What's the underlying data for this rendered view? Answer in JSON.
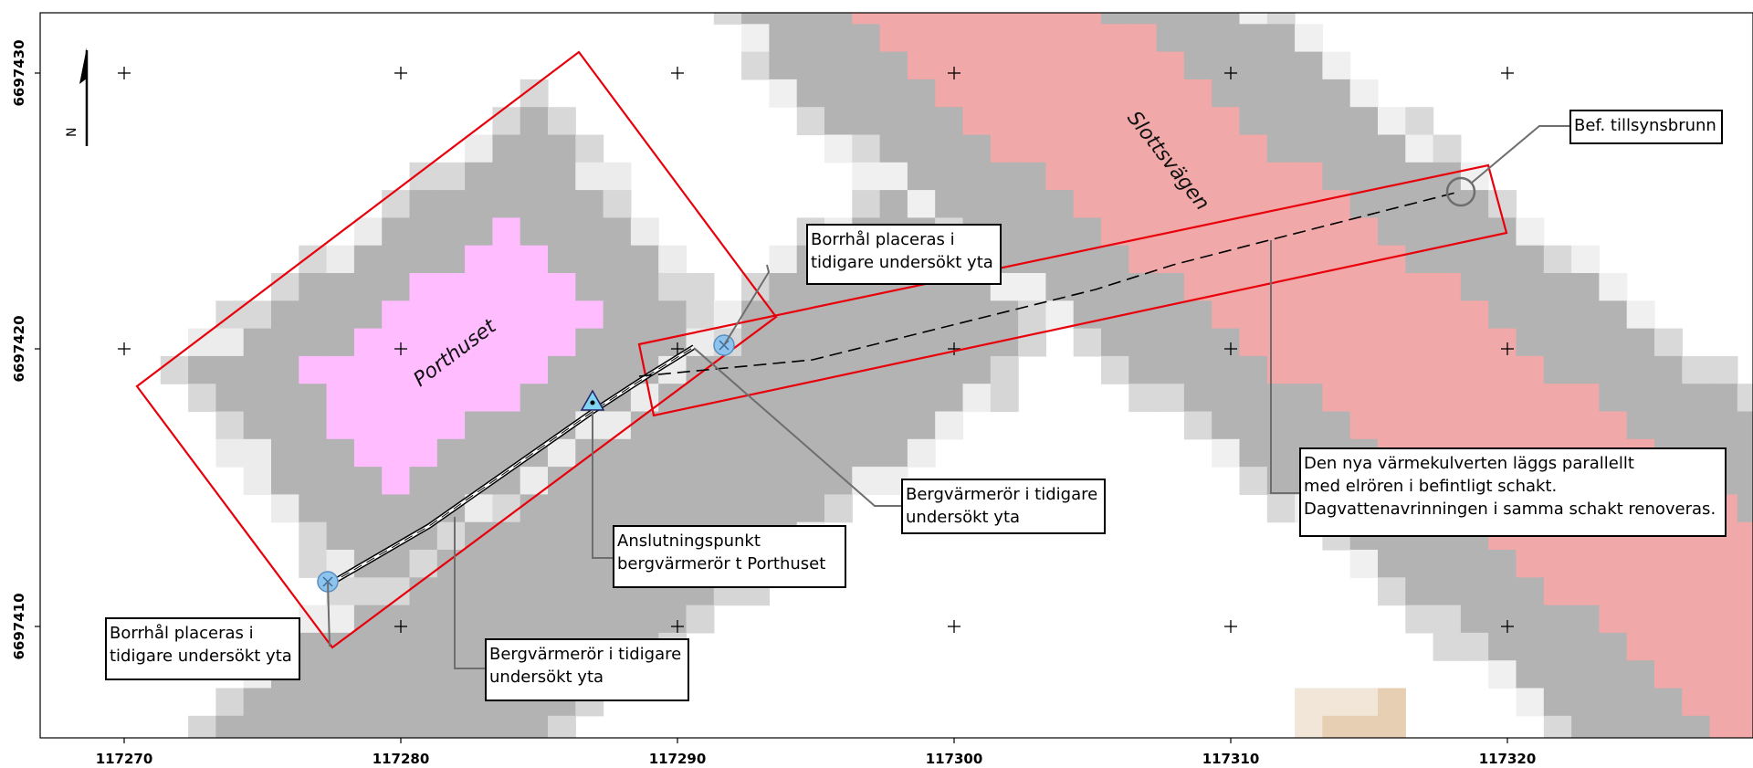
{
  "map": {
    "north_arrow_label": "N",
    "x_ticks": [
      "117270",
      "117280",
      "117290",
      "117300",
      "117310",
      "117320"
    ],
    "y_ticks": [
      "6697430",
      "6697420",
      "6697410"
    ],
    "place_labels": {
      "building": "Porthuset",
      "road": "Slottsvägen"
    },
    "callouts": {
      "bef_tillsynsbrunn": [
        "Bef. tillsynsbrunn"
      ],
      "borrhal_top": [
        "Borrhål placeras i",
        "tidigare undersökt yta"
      ],
      "bergvarme_right": [
        "Bergvärmerör i tidigare",
        "undersökt yta"
      ],
      "anslutningspunkt": [
        "Anslutningspunkt",
        "bergvärmerör t Porthuset"
      ],
      "varmekulvert": [
        "Den nya värmekulverten läggs parallellt",
        "med elrören i befintligt schakt.",
        "Dagvattenavrinningen i samma schakt renoveras."
      ],
      "borrhal_bottom": [
        "Borrhål placeras i",
        "tidigare undersökt yta"
      ],
      "bergvarme_bottom": [
        "Bergvärmerör i tidigare",
        "undersökt yta"
      ]
    },
    "colors": {
      "building_fill": "#ffbcff",
      "road_fill": "#f0a8a8",
      "gray_band": "#b3b3b3",
      "outline_red": "#e8000b",
      "marker_blue": "#8ec3ee"
    }
  }
}
